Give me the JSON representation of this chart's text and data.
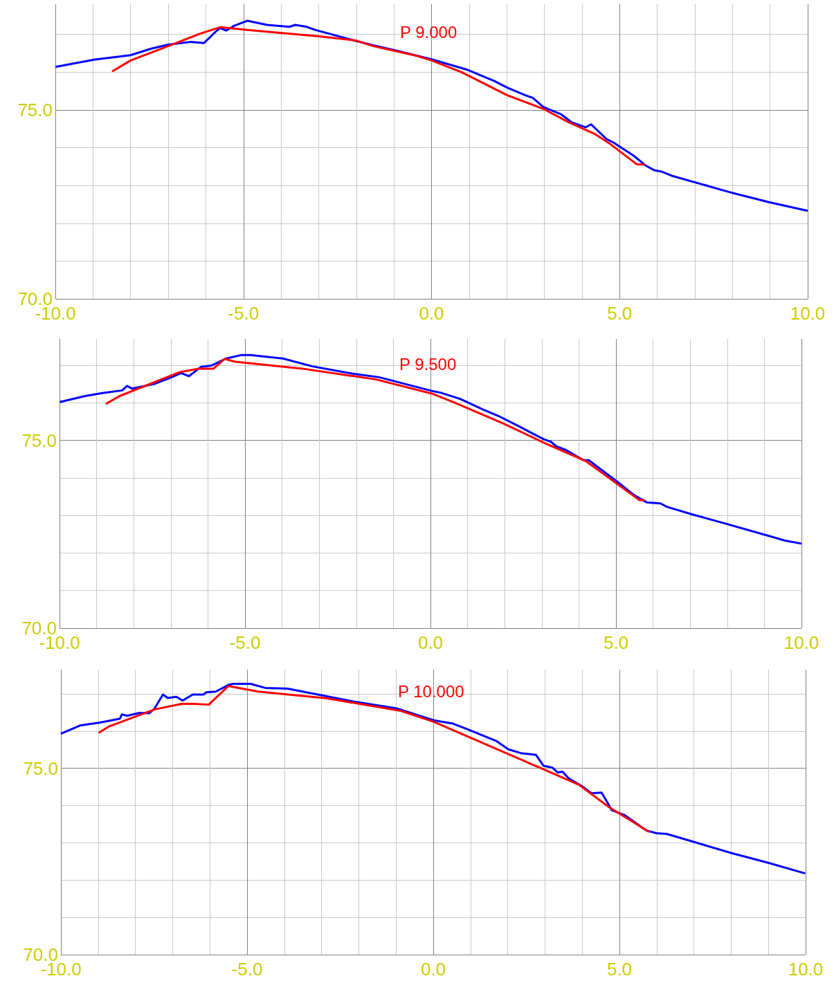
{
  "chart_data": [
    {
      "type": "line",
      "grid": true,
      "marker": "none",
      "xlim": [
        -10,
        10
      ],
      "ylim": [
        70,
        77.8
      ],
      "xticks": [
        {
          "value": -10,
          "label": "-10.0"
        },
        {
          "value": -9,
          "label": null
        },
        {
          "value": -8,
          "label": null
        },
        {
          "value": -7,
          "label": null
        },
        {
          "value": -6,
          "label": null
        },
        {
          "value": -5,
          "label": "-5.0"
        },
        {
          "value": -4,
          "label": null
        },
        {
          "value": -3,
          "label": null
        },
        {
          "value": -2,
          "label": null
        },
        {
          "value": -1,
          "label": null
        },
        {
          "value": 0,
          "label": "0.0"
        },
        {
          "value": 1,
          "label": null
        },
        {
          "value": 2,
          "label": null
        },
        {
          "value": 3,
          "label": null
        },
        {
          "value": 4,
          "label": null
        },
        {
          "value": 5,
          "label": "5.0"
        },
        {
          "value": 6,
          "label": null
        },
        {
          "value": 7,
          "label": null
        },
        {
          "value": 8,
          "label": null
        },
        {
          "value": 9,
          "label": null
        },
        {
          "value": 10,
          "label": "10.0"
        }
      ],
      "yticks": [
        {
          "value": 70,
          "label": "70.0"
        },
        {
          "value": 71,
          "label": null
        },
        {
          "value": 72,
          "label": null
        },
        {
          "value": 73,
          "label": null
        },
        {
          "value": 74,
          "label": null
        },
        {
          "value": 75,
          "label": "75.0"
        },
        {
          "value": 76,
          "label": null
        },
        {
          "value": 77,
          "label": null
        }
      ],
      "annotations": [
        "P 9.000"
      ],
      "series": [
        {
          "color": "#0000ff",
          "x": [
            -10,
            -8.97,
            -8,
            -7.46,
            -7,
            -6.41,
            -6.05,
            -5.75,
            -5.62,
            -5.46,
            -5.24,
            -4.9,
            -4.37,
            -3.78,
            -3.62,
            -3.32,
            -3.1,
            -2.02,
            -1.55,
            -0.89,
            0,
            0.93,
            1.68,
            2.01,
            2.49,
            2.69,
            2.97,
            3.45,
            3.73,
            4.1,
            4.24,
            4.65,
            4.85,
            5.37,
            5.69,
            5.93,
            6.11,
            6.38,
            8.01,
            8.97,
            10
          ],
          "values": [
            76.14,
            76.33,
            76.45,
            76.62,
            76.73,
            76.8,
            76.77,
            77.06,
            77.17,
            77.1,
            77.23,
            77.36,
            77.25,
            77.2,
            77.25,
            77.2,
            77.12,
            76.83,
            76.71,
            76.56,
            76.34,
            76.07,
            75.76,
            75.59,
            75.39,
            75.32,
            75.08,
            74.88,
            74.67,
            74.54,
            74.62,
            74.23,
            74.13,
            73.79,
            73.53,
            73.4,
            73.37,
            73.26,
            72.8,
            72.56,
            72.33
          ]
        },
        {
          "color": "#ff0000",
          "x": [
            -8.49,
            -8,
            -7,
            -6.15,
            -5.62,
            -4.9,
            -2.99,
            -2.02,
            -1.55,
            -0.43,
            0,
            0.8,
            2.01,
            2.97,
            3.65,
            4.33,
            4.75,
            5.46,
            5.67
          ],
          "values": [
            76.02,
            76.31,
            76.69,
            77.02,
            77.19,
            77.12,
            76.95,
            76.84,
            76.69,
            76.44,
            76.31,
            76,
            75.39,
            75.03,
            74.67,
            74.37,
            74.1,
            73.56,
            73.55
          ]
        }
      ]
    },
    {
      "type": "line",
      "grid": true,
      "marker": "none",
      "xlim": [
        -10,
        10
      ],
      "ylim": [
        70,
        77.7
      ],
      "xticks": [
        {
          "value": -10,
          "label": "-10.0"
        },
        {
          "value": -9,
          "label": null
        },
        {
          "value": -8,
          "label": null
        },
        {
          "value": -7,
          "label": null
        },
        {
          "value": -6,
          "label": null
        },
        {
          "value": -5,
          "label": "-5.0"
        },
        {
          "value": -4,
          "label": null
        },
        {
          "value": -3,
          "label": null
        },
        {
          "value": -2,
          "label": null
        },
        {
          "value": -1,
          "label": null
        },
        {
          "value": 0,
          "label": "0.0"
        },
        {
          "value": 1,
          "label": null
        },
        {
          "value": 2,
          "label": null
        },
        {
          "value": 3,
          "label": null
        },
        {
          "value": 4,
          "label": null
        },
        {
          "value": 5,
          "label": "5.0"
        },
        {
          "value": 6,
          "label": null
        },
        {
          "value": 7,
          "label": null
        },
        {
          "value": 8,
          "label": null
        },
        {
          "value": 9,
          "label": null
        },
        {
          "value": 10,
          "label": "10.0"
        }
      ],
      "yticks": [
        {
          "value": 70,
          "label": "70.0"
        },
        {
          "value": 71,
          "label": null
        },
        {
          "value": 72,
          "label": null
        },
        {
          "value": 73,
          "label": null
        },
        {
          "value": 74,
          "label": null
        },
        {
          "value": 75,
          "label": "75.0"
        },
        {
          "value": 76,
          "label": null
        },
        {
          "value": 77,
          "label": null
        }
      ],
      "annotations": [
        "P 9.500"
      ],
      "series": [
        {
          "color": "#0000ff",
          "x": [
            -10,
            -9.31,
            -8.85,
            -8.31,
            -8.18,
            -8.05,
            -7.45,
            -6.91,
            -6.72,
            -6.51,
            -6.18,
            -5.91,
            -5.51,
            -5.11,
            -4.85,
            -4.38,
            -3.98,
            -3.18,
            -2.12,
            -1.38,
            0.02,
            0.27,
            0.81,
            1.42,
            1.83,
            2.37,
            3.05,
            3.25,
            3.39,
            3.66,
            3.93,
            4.13,
            4.27,
            4.48,
            5.02,
            5.49,
            5.83,
            6.2,
            6.37,
            7.05,
            8,
            8.96,
            9.56,
            10
          ],
          "values": [
            76.02,
            76.18,
            76.26,
            76.33,
            76.45,
            76.38,
            76.5,
            76.71,
            76.79,
            76.71,
            76.96,
            76.99,
            77.18,
            77.27,
            77.27,
            77.22,
            77.18,
            76.97,
            76.78,
            76.68,
            76.32,
            76.27,
            76.1,
            75.82,
            75.65,
            75.38,
            75.03,
            74.96,
            74.84,
            74.74,
            74.58,
            74.47,
            74.47,
            74.31,
            73.91,
            73.54,
            73.35,
            73.32,
            73.23,
            73.03,
            72.77,
            72.5,
            72.33,
            72.25
          ]
        },
        {
          "color": "#ff0000",
          "x": [
            -8.75,
            -8.38,
            -6.78,
            -6.25,
            -5.85,
            -5.55,
            -5.25,
            -3.45,
            -1.46,
            0.02,
            0.61,
            1.96,
            3.05,
            4.2,
            4.81,
            5.63,
            5.77
          ],
          "values": [
            75.97,
            76.18,
            76.81,
            76.91,
            76.91,
            77.17,
            77.09,
            76.91,
            76.62,
            76.25,
            76.02,
            75.45,
            74.94,
            74.44,
            74,
            73.41,
            73.41
          ]
        }
      ]
    },
    {
      "type": "line",
      "grid": true,
      "marker": "none",
      "xlim": [
        -10,
        10
      ],
      "ylim": [
        70,
        77.65
      ],
      "xticks": [
        {
          "value": -10,
          "label": "-10.0"
        },
        {
          "value": -9,
          "label": null
        },
        {
          "value": -8,
          "label": null
        },
        {
          "value": -7,
          "label": null
        },
        {
          "value": -6,
          "label": null
        },
        {
          "value": -5,
          "label": "-5.0"
        },
        {
          "value": -4,
          "label": null
        },
        {
          "value": -3,
          "label": null
        },
        {
          "value": -2,
          "label": null
        },
        {
          "value": -1,
          "label": null
        },
        {
          "value": 0,
          "label": "0.0"
        },
        {
          "value": 1,
          "label": null
        },
        {
          "value": 2,
          "label": null
        },
        {
          "value": 3,
          "label": null
        },
        {
          "value": 4,
          "label": null
        },
        {
          "value": 5,
          "label": "5.0"
        },
        {
          "value": 6,
          "label": null
        },
        {
          "value": 7,
          "label": null
        },
        {
          "value": 8,
          "label": null
        },
        {
          "value": 9,
          "label": null
        },
        {
          "value": 10,
          "label": "10.0"
        }
      ],
      "yticks": [
        {
          "value": 70,
          "label": "70.0"
        },
        {
          "value": 71,
          "label": null
        },
        {
          "value": 72,
          "label": null
        },
        {
          "value": 73,
          "label": null
        },
        {
          "value": 74,
          "label": null
        },
        {
          "value": 75,
          "label": "75.0"
        },
        {
          "value": 76,
          "label": null
        },
        {
          "value": 77,
          "label": null
        }
      ],
      "annotations": [
        "P 10.000"
      ],
      "series": [
        {
          "color": "#0000ff",
          "x": [
            -10,
            -9.49,
            -8.95,
            -8.42,
            -8.36,
            -8.22,
            -7.89,
            -7.63,
            -7.49,
            -7.26,
            -7.13,
            -6.9,
            -6.73,
            -6.46,
            -6.17,
            -6.1,
            -5.84,
            -5.5,
            -5.37,
            -4.91,
            -4.51,
            -3.91,
            -2.98,
            -2.18,
            -0.99,
            0.01,
            0.53,
            0.94,
            1.68,
            2.02,
            2.35,
            2.76,
            2.96,
            3.2,
            3.34,
            3.47,
            3.64,
            3.98,
            4.25,
            4.52,
            4.65,
            4.79,
            5.13,
            5.73,
            6,
            6.27,
            6.95,
            7.96,
            8.98,
            9.99
          ],
          "values": [
            75.93,
            76.15,
            76.23,
            76.33,
            76.45,
            76.41,
            76.49,
            76.48,
            76.6,
            76.98,
            76.89,
            76.92,
            76.82,
            76.98,
            76.98,
            77.04,
            77.06,
            77.24,
            77.27,
            77.27,
            77.16,
            77.14,
            76.96,
            76.8,
            76.61,
            76.29,
            76.2,
            76.04,
            75.74,
            75.51,
            75.41,
            75.36,
            75.07,
            75.02,
            74.89,
            74.91,
            74.73,
            74.53,
            74.33,
            74.35,
            74.13,
            73.88,
            73.75,
            73.33,
            73.26,
            73.24,
            73.04,
            72.74,
            72.47,
            72.18
          ]
        },
        {
          "color": "#ff0000",
          "x": [
            -8.99,
            -8.72,
            -7.49,
            -6.77,
            -6.43,
            -6.03,
            -5.5,
            -4.7,
            -2.85,
            -0.86,
            0.01,
            0.87,
            2.9,
            3.91,
            4.72,
            5.8
          ],
          "values": [
            75.95,
            76.12,
            76.58,
            76.73,
            76.73,
            76.71,
            77.21,
            77.06,
            76.88,
            76.54,
            76.25,
            75.88,
            75,
            74.56,
            73.96,
            73.29
          ]
        }
      ]
    }
  ]
}
